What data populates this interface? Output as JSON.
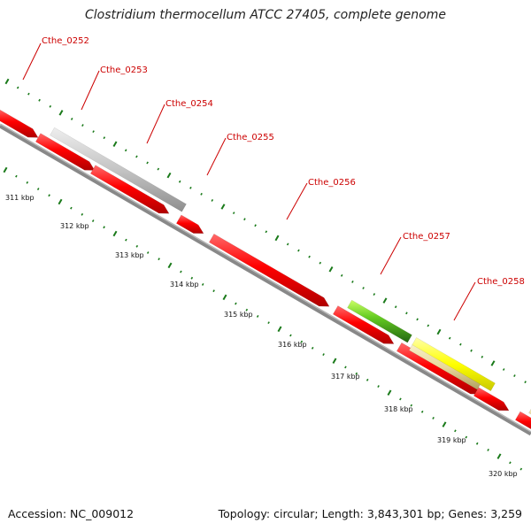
{
  "title": "Clostridium thermocellum ATCC 27405, complete genome",
  "footer": {
    "accession": "Accession: NC_009012",
    "stats": "Topology: circular; Length: 3,843,301 bp; Genes: 3,259"
  },
  "colors": {
    "cds_red": "#ff0000",
    "highlight_gray": "#c8c8c8",
    "highlight_green": "#66cc22",
    "highlight_yellow": "#ffff00",
    "highlight_tan": "#e8d89a",
    "backbone": "#888888",
    "tick_green": "#1a7a1a",
    "label_red": "#cc0000"
  },
  "gene_labels": [
    "Cthe_0252",
    "Cthe_0253",
    "Cthe_0254",
    "Cthe_0255",
    "Cthe_0256",
    "Cthe_0257",
    "Cthe_0258"
  ],
  "kbp_labels": [
    "311 kbp",
    "312 kbp",
    "313 kbp",
    "314 kbp",
    "315 kbp",
    "316 kbp",
    "317 kbp",
    "318 kbp",
    "319 kbp",
    "320 kbp"
  ]
}
